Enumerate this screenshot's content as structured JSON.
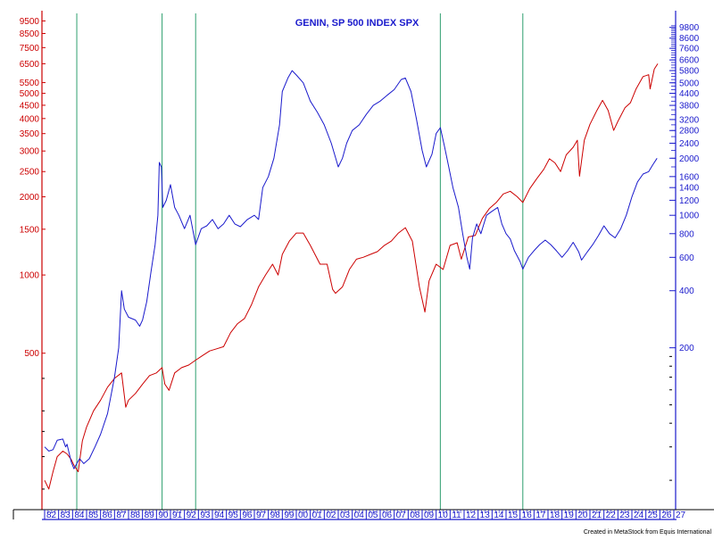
{
  "chart_data": {
    "type": "line",
    "title": "GENIN, SP 500 INDEX SPX",
    "credit": "Created in MetaStock from Equis International",
    "x_tick_labels": [
      "82",
      "83",
      "84",
      "85",
      "86",
      "87",
      "88",
      "89",
      "90",
      "91",
      "92",
      "93",
      "94",
      "95",
      "96",
      "97",
      "98",
      "99",
      "00",
      "01",
      "02",
      "03",
      "04",
      "05",
      "06",
      "07",
      "08",
      "09",
      "10",
      "11",
      "12",
      "13",
      "14",
      "15",
      "16",
      "17",
      "18",
      "19",
      "20",
      "21",
      "22",
      "23",
      "24",
      "25",
      "26",
      "27"
    ],
    "x_range": [
      1982,
      2027
    ],
    "vertical_markers": [
      1984.3,
      1990.4,
      1992.8,
      2010.3,
      2016.2
    ],
    "left_axis": {
      "scale": "log",
      "color": "#cc0000",
      "ticks": [
        9500,
        8500,
        7500,
        6500,
        5500,
        5000,
        4500,
        4000,
        3500,
        3000,
        2500,
        2000,
        1500,
        1000,
        500
      ],
      "range": [
        125,
        10400
      ]
    },
    "right_axis": {
      "scale": "log",
      "color": "#1a1acc",
      "ticks": [
        9800,
        8600,
        7600,
        6600,
        5800,
        5000,
        4400,
        3800,
        3200,
        2800,
        2400,
        2000,
        1600,
        1400,
        1200,
        1000,
        800,
        600,
        400,
        200
      ],
      "range": [
        28,
        12000
      ]
    },
    "series": [
      {
        "axis": "left",
        "color": "#cc0000",
        "points": [
          [
            1982.0,
            162
          ],
          [
            1982.3,
            150
          ],
          [
            1982.6,
            175
          ],
          [
            1982.9,
            200
          ],
          [
            1983.3,
            210
          ],
          [
            1983.6,
            205
          ],
          [
            1983.9,
            195
          ],
          [
            1984.1,
            185
          ],
          [
            1984.4,
            175
          ],
          [
            1984.7,
            230
          ],
          [
            1985.0,
            260
          ],
          [
            1985.5,
            300
          ],
          [
            1986.0,
            330
          ],
          [
            1986.5,
            370
          ],
          [
            1987.0,
            400
          ],
          [
            1987.5,
            420
          ],
          [
            1987.8,
            310
          ],
          [
            1988.0,
            330
          ],
          [
            1988.5,
            350
          ],
          [
            1989.0,
            380
          ],
          [
            1989.5,
            410
          ],
          [
            1990.0,
            420
          ],
          [
            1990.4,
            440
          ],
          [
            1990.6,
            380
          ],
          [
            1990.9,
            360
          ],
          [
            1991.3,
            420
          ],
          [
            1991.8,
            440
          ],
          [
            1992.3,
            450
          ],
          [
            1992.8,
            470
          ],
          [
            1993.3,
            490
          ],
          [
            1993.8,
            510
          ],
          [
            1994.3,
            520
          ],
          [
            1994.8,
            530
          ],
          [
            1995.3,
            600
          ],
          [
            1995.8,
            650
          ],
          [
            1996.3,
            680
          ],
          [
            1996.8,
            770
          ],
          [
            1997.3,
            900
          ],
          [
            1997.8,
            1000
          ],
          [
            1998.3,
            1100
          ],
          [
            1998.7,
            1000
          ],
          [
            1999.0,
            1200
          ],
          [
            1999.5,
            1350
          ],
          [
            2000.0,
            1450
          ],
          [
            2000.5,
            1450
          ],
          [
            2001.0,
            1300
          ],
          [
            2001.7,
            1100
          ],
          [
            2002.2,
            1100
          ],
          [
            2002.6,
            880
          ],
          [
            2002.8,
            850
          ],
          [
            2003.3,
            900
          ],
          [
            2003.8,
            1050
          ],
          [
            2004.3,
            1150
          ],
          [
            2004.8,
            1170
          ],
          [
            2005.3,
            1200
          ],
          [
            2005.8,
            1230
          ],
          [
            2006.3,
            1300
          ],
          [
            2006.8,
            1350
          ],
          [
            2007.3,
            1450
          ],
          [
            2007.8,
            1520
          ],
          [
            2008.3,
            1350
          ],
          [
            2008.8,
            900
          ],
          [
            2009.2,
            720
          ],
          [
            2009.5,
            950
          ],
          [
            2010.0,
            1100
          ],
          [
            2010.5,
            1050
          ],
          [
            2011.0,
            1300
          ],
          [
            2011.5,
            1330
          ],
          [
            2011.8,
            1150
          ],
          [
            2012.3,
            1400
          ],
          [
            2012.8,
            1420
          ],
          [
            2013.3,
            1650
          ],
          [
            2013.8,
            1800
          ],
          [
            2014.3,
            1900
          ],
          [
            2014.8,
            2050
          ],
          [
            2015.3,
            2100
          ],
          [
            2015.8,
            2000
          ],
          [
            2016.2,
            1900
          ],
          [
            2016.7,
            2150
          ],
          [
            2017.2,
            2350
          ],
          [
            2017.7,
            2550
          ],
          [
            2018.1,
            2800
          ],
          [
            2018.5,
            2700
          ],
          [
            2018.9,
            2500
          ],
          [
            2019.3,
            2900
          ],
          [
            2019.8,
            3100
          ],
          [
            2020.1,
            3300
          ],
          [
            2020.25,
            2400
          ],
          [
            2020.6,
            3300
          ],
          [
            2021.0,
            3800
          ],
          [
            2021.5,
            4300
          ],
          [
            2021.9,
            4700
          ],
          [
            2022.3,
            4300
          ],
          [
            2022.7,
            3600
          ],
          [
            2023.0,
            3900
          ],
          [
            2023.5,
            4400
          ],
          [
            2023.9,
            4600
          ],
          [
            2024.3,
            5200
          ],
          [
            2024.8,
            5800
          ],
          [
            2025.2,
            5900
          ],
          [
            2025.3,
            5200
          ],
          [
            2025.6,
            6200
          ],
          [
            2025.85,
            6500
          ]
        ]
      },
      {
        "axis": "right",
        "color": "#1a1acc",
        "points": [
          [
            1982.0,
            60
          ],
          [
            1982.3,
            57
          ],
          [
            1982.6,
            58
          ],
          [
            1982.9,
            65
          ],
          [
            1983.3,
            66
          ],
          [
            1983.5,
            60
          ],
          [
            1983.6,
            62
          ],
          [
            1983.9,
            50
          ],
          [
            1984.1,
            46
          ],
          [
            1984.3,
            49
          ],
          [
            1984.5,
            52
          ],
          [
            1984.8,
            49
          ],
          [
            1985.2,
            52
          ],
          [
            1985.6,
            60
          ],
          [
            1986.0,
            70
          ],
          [
            1986.5,
            90
          ],
          [
            1987.0,
            140
          ],
          [
            1987.3,
            200
          ],
          [
            1987.5,
            400
          ],
          [
            1987.7,
            320
          ],
          [
            1988.0,
            290
          ],
          [
            1988.5,
            280
          ],
          [
            1988.8,
            260
          ],
          [
            1989.0,
            280
          ],
          [
            1989.3,
            350
          ],
          [
            1989.6,
            500
          ],
          [
            1989.9,
            700
          ],
          [
            1990.1,
            1000
          ],
          [
            1990.2,
            1900
          ],
          [
            1990.35,
            1800
          ],
          [
            1990.45,
            1100
          ],
          [
            1990.7,
            1200
          ],
          [
            1991.0,
            1450
          ],
          [
            1991.3,
            1100
          ],
          [
            1991.6,
            1000
          ],
          [
            1992.0,
            850
          ],
          [
            1992.4,
            1000
          ],
          [
            1992.8,
            700
          ],
          [
            1993.2,
            850
          ],
          [
            1993.6,
            880
          ],
          [
            1994.0,
            950
          ],
          [
            1994.4,
            850
          ],
          [
            1994.8,
            900
          ],
          [
            1995.2,
            1000
          ],
          [
            1995.6,
            900
          ],
          [
            1996.0,
            870
          ],
          [
            1996.5,
            950
          ],
          [
            1997.0,
            1000
          ],
          [
            1997.3,
            950
          ],
          [
            1997.6,
            1400
          ],
          [
            1998.0,
            1600
          ],
          [
            1998.4,
            2000
          ],
          [
            1998.8,
            3000
          ],
          [
            1999.0,
            4500
          ],
          [
            1999.4,
            5300
          ],
          [
            1999.7,
            5800
          ],
          [
            2000.0,
            5500
          ],
          [
            2000.5,
            5000
          ],
          [
            2001.0,
            4000
          ],
          [
            2001.5,
            3500
          ],
          [
            2002.0,
            3000
          ],
          [
            2002.5,
            2400
          ],
          [
            2003.0,
            1800
          ],
          [
            2003.3,
            2000
          ],
          [
            2003.6,
            2400
          ],
          [
            2004.0,
            2800
          ],
          [
            2004.5,
            3000
          ],
          [
            2005.0,
            3400
          ],
          [
            2005.5,
            3800
          ],
          [
            2006.0,
            4000
          ],
          [
            2006.5,
            4300
          ],
          [
            2007.0,
            4600
          ],
          [
            2007.5,
            5200
          ],
          [
            2007.8,
            5300
          ],
          [
            2008.2,
            4500
          ],
          [
            2008.6,
            3200
          ],
          [
            2009.0,
            2200
          ],
          [
            2009.3,
            1800
          ],
          [
            2009.7,
            2100
          ],
          [
            2010.0,
            2700
          ],
          [
            2010.3,
            2900
          ],
          [
            2010.6,
            2300
          ],
          [
            2010.9,
            1800
          ],
          [
            2011.2,
            1400
          ],
          [
            2011.6,
            1100
          ],
          [
            2011.9,
            800
          ],
          [
            2012.2,
            600
          ],
          [
            2012.4,
            520
          ],
          [
            2012.6,
            760
          ],
          [
            2012.9,
            900
          ],
          [
            2013.2,
            800
          ],
          [
            2013.6,
            1000
          ],
          [
            2014.0,
            1050
          ],
          [
            2014.4,
            1100
          ],
          [
            2014.7,
            900
          ],
          [
            2015.0,
            800
          ],
          [
            2015.3,
            750
          ],
          [
            2015.6,
            650
          ],
          [
            2016.0,
            570
          ],
          [
            2016.2,
            520
          ],
          [
            2016.6,
            600
          ],
          [
            2017.0,
            650
          ],
          [
            2017.4,
            700
          ],
          [
            2017.8,
            740
          ],
          [
            2018.2,
            700
          ],
          [
            2018.6,
            650
          ],
          [
            2019.0,
            600
          ],
          [
            2019.4,
            650
          ],
          [
            2019.8,
            720
          ],
          [
            2020.0,
            680
          ],
          [
            2020.2,
            640
          ],
          [
            2020.4,
            580
          ],
          [
            2020.8,
            640
          ],
          [
            2021.2,
            700
          ],
          [
            2021.6,
            780
          ],
          [
            2022.0,
            880
          ],
          [
            2022.4,
            800
          ],
          [
            2022.8,
            760
          ],
          [
            2023.2,
            850
          ],
          [
            2023.6,
            1000
          ],
          [
            2024.0,
            1250
          ],
          [
            2024.4,
            1500
          ],
          [
            2024.8,
            1650
          ],
          [
            2025.2,
            1700
          ],
          [
            2025.5,
            1850
          ],
          [
            2025.8,
            2000
          ]
        ]
      }
    ]
  }
}
